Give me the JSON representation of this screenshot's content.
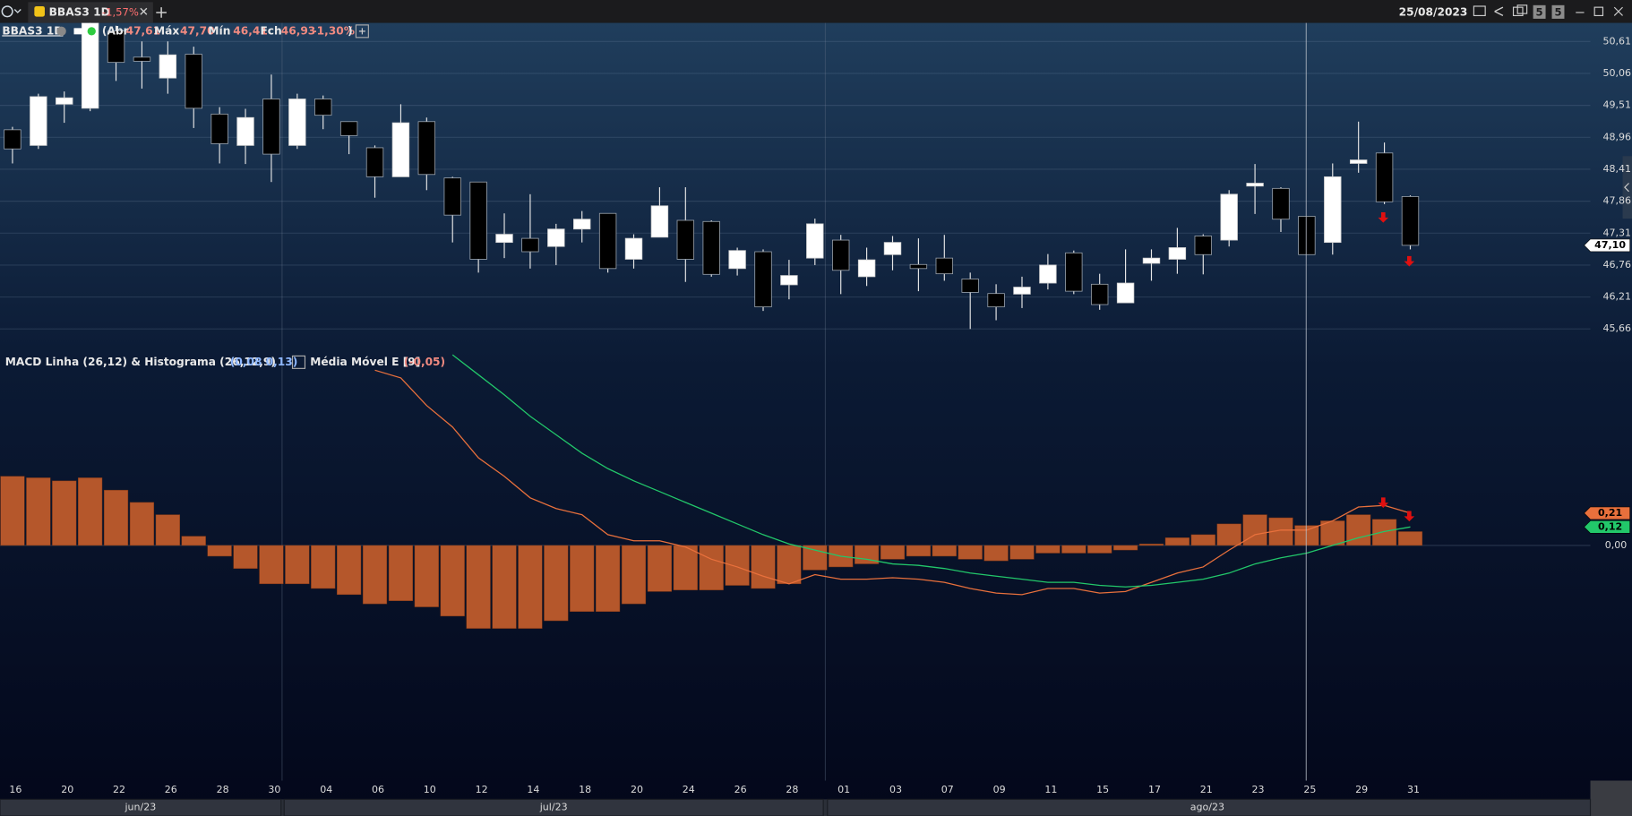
{
  "tab": {
    "symbol": "BBAS3 1D",
    "change": "-1,57%"
  },
  "toolbar": {
    "date": "25/08/2023",
    "badges": [
      "5",
      "5"
    ]
  },
  "months": [
    "jun/23",
    "jul/23",
    "ago/23"
  ],
  "chart_data": [
    {
      "type": "candlestick",
      "name": "BBAS3 1D",
      "header": {
        "open_label": "(Abr",
        "open": "47,61",
        "high_label": "Máx",
        "high": "47,70",
        "low_label": "Mín",
        "low": "46,41",
        "close_label": "Fch",
        "close": "46,93",
        "change": "-1,30%",
        "end": ")"
      },
      "categories": [
        "16",
        null,
        "20",
        null,
        "22",
        null,
        "26",
        null,
        "28",
        null,
        "30",
        null,
        "04",
        null,
        "06",
        null,
        "10",
        null,
        "12",
        null,
        "14",
        null,
        "18",
        null,
        "20",
        null,
        "24",
        null,
        "26",
        null,
        "28",
        null,
        "01",
        null,
        "03",
        null,
        "07",
        null,
        "09",
        null,
        "11",
        null,
        "15",
        null,
        "17",
        null,
        "21",
        null,
        "23",
        null,
        "25",
        null,
        "29",
        null,
        "31"
      ],
      "open": [
        49.09,
        48.82,
        49.53,
        49.46,
        50.79,
        50.34,
        49.98,
        50.39,
        49.36,
        48.82,
        49.62,
        48.82,
        49.62,
        49.23,
        48.78,
        48.28,
        49.23,
        48.26,
        48.19,
        47.15,
        47.22,
        47.08,
        47.38,
        47.65,
        46.86,
        47.24,
        47.53,
        47.51,
        46.7,
        46.99,
        46.42,
        46.88,
        47.19,
        46.56,
        46.94,
        46.77,
        46.88,
        46.52,
        46.27,
        46.26,
        46.45,
        46.97,
        46.43,
        46.11,
        46.79,
        46.86,
        47.26,
        47.19,
        48.12,
        48.08,
        47.6,
        47.15,
        48.51,
        48.69,
        47.94
      ],
      "high": [
        49.14,
        49.71,
        49.75,
        50.97,
        50.88,
        50.61,
        50.61,
        50.52,
        49.48,
        49.45,
        50.04,
        49.71,
        49.68,
        49.23,
        48.82,
        49.53,
        49.3,
        48.28,
        48.19,
        47.65,
        47.98,
        47.47,
        47.69,
        47.65,
        47.29,
        48.1,
        48.1,
        47.53,
        47.06,
        47.03,
        46.85,
        47.56,
        47.28,
        47.06,
        47.26,
        47.22,
        47.28,
        46.63,
        46.43,
        46.56,
        46.95,
        47.01,
        46.61,
        47.03,
        47.03,
        47.4,
        47.29,
        48.05,
        48.5,
        48.1,
        47.6,
        48.51,
        49.23,
        48.87,
        47.96
      ],
      "low": [
        48.51,
        48.76,
        49.21,
        49.41,
        49.93,
        49.8,
        49.71,
        49.12,
        48.51,
        48.5,
        48.19,
        48.76,
        49.1,
        48.67,
        47.92,
        48.28,
        48.05,
        47.15,
        46.63,
        46.88,
        46.7,
        46.76,
        47.15,
        46.63,
        46.7,
        47.24,
        46.47,
        46.56,
        46.58,
        45.97,
        46.17,
        46.76,
        46.26,
        46.4,
        46.67,
        46.31,
        46.49,
        45.66,
        45.81,
        46.02,
        46.34,
        46.26,
        45.99,
        46.11,
        46.49,
        46.61,
        46.6,
        47.08,
        47.64,
        47.33,
        46.94,
        46.94,
        48.35,
        47.81,
        47.03
      ],
      "close": [
        48.76,
        49.66,
        49.64,
        50.97,
        50.25,
        50.27,
        50.38,
        49.46,
        48.85,
        49.3,
        48.67,
        49.62,
        49.34,
        48.99,
        48.28,
        49.21,
        48.32,
        47.62,
        46.86,
        47.29,
        46.99,
        47.38,
        47.55,
        46.7,
        47.22,
        47.78,
        46.86,
        46.6,
        47.01,
        46.04,
        46.58,
        47.47,
        46.67,
        46.85,
        47.15,
        46.7,
        46.61,
        46.29,
        46.04,
        46.38,
        46.76,
        46.31,
        46.08,
        46.45,
        46.88,
        47.06,
        46.94,
        47.98,
        48.17,
        47.55,
        46.94,
        48.28,
        48.57,
        47.85,
        47.1
      ],
      "up_color": "#ffffff",
      "down_color": "#000000",
      "ylim": [
        45.41,
        50.93
      ],
      "yticks": [
        {
          "value": 50.61,
          "label": "50,61"
        },
        {
          "value": 50.06,
          "label": "50,06"
        },
        {
          "value": 49.51,
          "label": "49,51"
        },
        {
          "value": 48.96,
          "label": "48,96"
        },
        {
          "value": 48.41,
          "label": "48,41"
        },
        {
          "value": 47.86,
          "label": "47,86"
        },
        {
          "value": 47.31,
          "label": "47,31"
        },
        {
          "value": 46.76,
          "label": "46,76"
        },
        {
          "value": 46.21,
          "label": "46,21"
        },
        {
          "value": 45.66,
          "label": "45,66"
        }
      ],
      "grid": true,
      "last_label": "47,10"
    },
    {
      "type": "macd",
      "title": "MACD Linha (26,12) & Histograma (26,12,9)",
      "title_values": "(0,08  0,13)",
      "signal_title": "Média Móvel E [9]",
      "signal_value": "(-0,05)",
      "histogram": {
        "color": "#b5572b",
        "values": [
          0.45,
          0.44,
          0.42,
          0.44,
          0.36,
          0.28,
          0.2,
          0.06,
          -0.07,
          -0.15,
          -0.25,
          -0.25,
          -0.28,
          -0.32,
          -0.38,
          -0.36,
          -0.4,
          -0.46,
          -0.54,
          -0.54,
          -0.54,
          -0.49,
          -0.43,
          -0.43,
          -0.38,
          -0.3,
          -0.29,
          -0.29,
          -0.26,
          -0.28,
          -0.25,
          -0.16,
          -0.14,
          -0.12,
          -0.09,
          -0.07,
          -0.07,
          -0.09,
          -0.1,
          -0.09,
          -0.05,
          -0.05,
          -0.05,
          -0.03,
          0.01,
          0.05,
          0.07,
          0.14,
          0.2,
          0.18,
          0.13,
          0.16,
          0.2,
          0.17,
          0.09
        ]
      },
      "macd": {
        "color": "#e8703c",
        "last_label": "0,21",
        "values": [
          null,
          null,
          null,
          null,
          null,
          null,
          null,
          null,
          null,
          null,
          null,
          null,
          null,
          null,
          1.14,
          1.09,
          0.91,
          0.77,
          0.57,
          0.45,
          0.31,
          0.24,
          0.2,
          0.07,
          0.03,
          0.03,
          -0.01,
          -0.09,
          -0.14,
          -0.2,
          -0.25,
          -0.19,
          -0.22,
          -0.22,
          -0.21,
          -0.22,
          -0.24,
          -0.28,
          -0.31,
          -0.32,
          -0.28,
          -0.28,
          -0.31,
          -0.3,
          -0.24,
          -0.18,
          -0.14,
          -0.03,
          0.07,
          0.1,
          0.1,
          0.16,
          0.25,
          0.26,
          0.21
        ]
      },
      "signal": {
        "color": "#22c76a",
        "last_label": "0,12",
        "values": [
          null,
          null,
          null,
          null,
          null,
          null,
          null,
          null,
          null,
          null,
          null,
          null,
          null,
          null,
          null,
          null,
          null,
          1.24,
          1.11,
          0.98,
          0.84,
          0.72,
          0.6,
          0.5,
          0.42,
          0.35,
          0.28,
          0.21,
          0.14,
          0.07,
          0.01,
          -0.03,
          -0.07,
          -0.09,
          -0.12,
          -0.13,
          -0.15,
          -0.18,
          -0.2,
          -0.22,
          -0.24,
          -0.24,
          -0.26,
          -0.27,
          -0.26,
          -0.24,
          -0.22,
          -0.18,
          -0.12,
          -0.08,
          -0.05,
          0.0,
          0.05,
          0.09,
          0.12
        ]
      },
      "ylim": [
        -1.53,
        1.28
      ],
      "yticks": [
        {
          "value": 0,
          "label": "0,00"
        }
      ]
    }
  ]
}
